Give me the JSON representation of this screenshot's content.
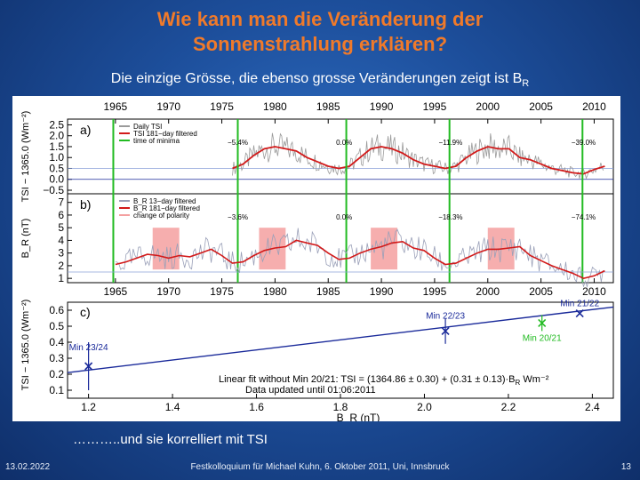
{
  "slide": {
    "title_line1": "Wie kann man die Veränderung der",
    "title_line2": "Sonnenstrahlung erklären?",
    "subtitle_main": "Die einzige Grösse, die ebenso grosse Veränderungen zeigt ist B",
    "subtitle_sub": "R",
    "caption": "………..und sie korrelliert mit TSI",
    "footer_date": "13.02.2022",
    "footer_event": "Festkolloquium für Michael Kuhn, 6. Oktober 2011, Uni, Innsbruck",
    "footer_page": "13"
  },
  "colors": {
    "title": "#f07a2a",
    "background": "#1d4f9c",
    "red_curve": "#d21a1a",
    "minima_line": "#22bb22",
    "polarity_box": "#f4a0a0",
    "fit_line": "#1a2a9a"
  },
  "chart_data": [
    {
      "type": "line",
      "panel": "a)",
      "ylabel": "TSI − 1365.0 (Wm⁻²)",
      "yticks": [
        "2.5",
        "2.0",
        "1.5",
        "1.0",
        "0.5",
        "0.0",
        "−0.5"
      ],
      "xticks_top": [
        "1965",
        "1970",
        "1975",
        "1980",
        "1985",
        "1990",
        "1995",
        "2000",
        "2005",
        "2010"
      ],
      "legend": [
        "Daily TSI",
        "TSI 181−day filtered",
        "time of minima"
      ],
      "annotations": [
        {
          "text": "−5.4%",
          "year": 1976.5
        },
        {
          "text": "0.0%",
          "year": 1986.5
        },
        {
          "text": "−11.9%",
          "year": 1996.5
        },
        {
          "text": "−39.0%",
          "year": 2009
        }
      ],
      "minima_years": [
        1964.8,
        1976.5,
        1986.7,
        1996.4,
        2008.9
      ],
      "series": [
        {
          "name": "TSI 181−day filtered",
          "x": [
            1976.0,
            1977,
            1978,
            1979,
            1980,
            1981,
            1982,
            1983,
            1984,
            1985,
            1986,
            1987,
            1988,
            1989,
            1990,
            1991,
            1992,
            1993,
            1994,
            1995,
            1996,
            1997,
            1998,
            1999,
            2000,
            2001,
            2002,
            2003,
            2004,
            2005,
            2006,
            2007,
            2008,
            2009,
            2010,
            2011
          ],
          "y": [
            0.5,
            0.7,
            1.1,
            1.4,
            1.5,
            1.4,
            1.3,
            1.0,
            0.8,
            0.6,
            0.5,
            0.6,
            1.0,
            1.4,
            1.5,
            1.4,
            1.2,
            0.9,
            0.7,
            0.6,
            0.5,
            0.6,
            1.0,
            1.3,
            1.5,
            1.4,
            1.4,
            1.0,
            0.9,
            0.7,
            0.5,
            0.4,
            0.3,
            0.25,
            0.45,
            0.6
          ]
        }
      ]
    },
    {
      "type": "line",
      "panel": "b)",
      "ylabel": "B_R (nT)",
      "yticks": [
        "7",
        "6",
        "5",
        "4",
        "3",
        "2",
        "1"
      ],
      "legend": [
        "B_R 13−day filtered",
        "B_R 181−day filtered",
        "change of polarity"
      ],
      "annotations": [
        {
          "text": "−3.6%",
          "year": 1976.5
        },
        {
          "text": "0.0%",
          "year": 1986.5
        },
        {
          "text": "−18.3%",
          "year": 1996.5
        },
        {
          "text": "−74.1%",
          "year": 2009
        }
      ],
      "polarity_changes": [
        [
          1968.5,
          1971
        ],
        [
          1978.5,
          1981
        ],
        [
          1989,
          1991.5
        ],
        [
          2000,
          2002.5
        ]
      ],
      "series": [
        {
          "name": "B_R 181−day filtered",
          "x": [
            1965,
            1966,
            1967,
            1968,
            1969,
            1970,
            1971,
            1972,
            1973,
            1974,
            1975,
            1976,
            1977,
            1978,
            1979,
            1980,
            1981,
            1982,
            1983,
            1984,
            1985,
            1986,
            1987,
            1988,
            1989,
            1990,
            1991,
            1992,
            1993,
            1994,
            1995,
            1996,
            1997,
            1998,
            1999,
            2000,
            2001,
            2002,
            2003,
            2004,
            2005,
            2006,
            2007,
            2008,
            2009,
            2010,
            2011
          ],
          "y": [
            2.1,
            2.3,
            2.6,
            2.9,
            2.8,
            2.6,
            2.8,
            2.7,
            3.0,
            3.3,
            2.8,
            2.2,
            2.3,
            2.8,
            3.2,
            3.4,
            3.5,
            4.0,
            3.8,
            3.6,
            3.0,
            2.5,
            2.6,
            3.0,
            3.3,
            3.5,
            3.8,
            3.9,
            3.4,
            3.2,
            2.6,
            2.1,
            2.2,
            2.6,
            3.0,
            3.3,
            3.3,
            3.4,
            3.5,
            2.8,
            2.4,
            2.0,
            1.7,
            1.4,
            1.0,
            1.2,
            1.6
          ]
        }
      ]
    },
    {
      "type": "scatter",
      "panel": "c)",
      "xlabel": "B_R (nT)",
      "ylabel": "TSI − 1365.0 (Wm⁻²)",
      "xticks_top": [
        "1965",
        "1970",
        "1975",
        "1980",
        "1985",
        "1990",
        "1995",
        "2000",
        "2005",
        "2010"
      ],
      "xticks": [
        "1.2",
        "1.4",
        "1.6",
        "1.8",
        "2.0",
        "2.2",
        "2.4"
      ],
      "yticks": [
        "0.6",
        "0.5",
        "0.4",
        "0.3",
        "0.2",
        "0.1"
      ],
      "xlim": [
        1.15,
        2.45
      ],
      "ylim": [
        0.05,
        0.65
      ],
      "points": [
        {
          "label": "Min 23/24",
          "x": 1.2,
          "y": 0.25,
          "err": 0.15,
          "color": "#1a2a9a"
        },
        {
          "label": "Min 22/23",
          "x": 2.05,
          "y": 0.47,
          "err": 0.08,
          "color": "#1a2a9a"
        },
        {
          "label": "Min 21/22",
          "x": 2.37,
          "y": 0.58,
          "err": 0.0,
          "color": "#1a2a9a"
        },
        {
          "label": "Min 20/21",
          "x": 2.28,
          "y": 0.52,
          "err": 0.05,
          "color": "#22bb22"
        }
      ],
      "fit_line": {
        "x": [
          1.15,
          2.45
        ],
        "y": [
          0.21,
          0.62
        ]
      },
      "fit_text_line1": "Linear fit without Min 20/21: TSI = (1364.86 ± 0.30) + (0.31 ± 0.13)·B",
      "fit_text_sub": "R",
      "fit_text_unit": " Wm⁻²",
      "data_updated": "Data updated until 01:06:2011"
    }
  ]
}
